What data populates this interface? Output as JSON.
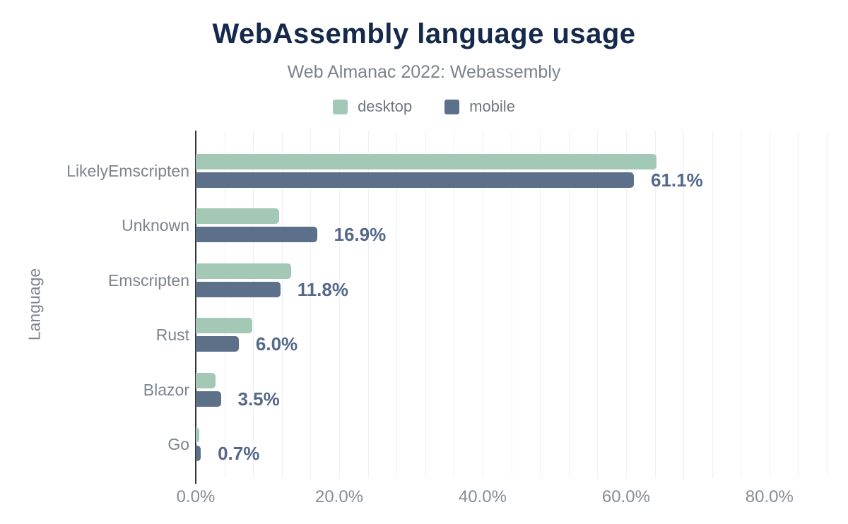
{
  "title": "WebAssembly language usage",
  "subtitle": "Web Almanac 2022: Webassembly",
  "legend": {
    "items": [
      {
        "label": "desktop",
        "color": "#a4c8b6"
      },
      {
        "label": "mobile",
        "color": "#5d7089"
      }
    ]
  },
  "colors": {
    "title": "#14294b",
    "subtitle": "#7b828c",
    "legend_text": "#6f7680",
    "category_label": "#7d848e",
    "tick_label": "#868d97",
    "data_label": "#54688a",
    "axis_line": "#303338",
    "gridline": "#eef0f3",
    "desktop_bar": "#a4c8b6",
    "mobile_bar": "#5d7089",
    "background": "#ffffff"
  },
  "chart_data": {
    "type": "bar",
    "orientation": "horizontal",
    "title": "WebAssembly language usage",
    "subtitle": "Web Almanac 2022: Webassembly",
    "xlabel": "",
    "ylabel": "Language",
    "categories": [
      "LikelyEmscripten",
      "Unknown",
      "Emscripten",
      "Rust",
      "Blazor",
      "Go"
    ],
    "series": [
      {
        "name": "desktop",
        "color": "#a4c8b6",
        "values": [
          64.2,
          11.6,
          13.3,
          7.9,
          2.8,
          0.5
        ]
      },
      {
        "name": "mobile",
        "color": "#5d7089",
        "values": [
          61.1,
          16.9,
          11.8,
          6.0,
          3.5,
          0.7
        ]
      }
    ],
    "data_labels": {
      "series": "mobile",
      "values": [
        "61.1%",
        "16.9%",
        "11.8%",
        "6.0%",
        "3.5%",
        "0.7%"
      ]
    },
    "xlim": [
      0,
      88
    ],
    "xticks": [
      0,
      20,
      40,
      60,
      80
    ],
    "xtick_labels": [
      "0.0%",
      "20.0%",
      "40.0%",
      "60.0%",
      "80.0%"
    ],
    "grid": {
      "on": true,
      "minor_step": 4
    },
    "legend_position": "top"
  }
}
